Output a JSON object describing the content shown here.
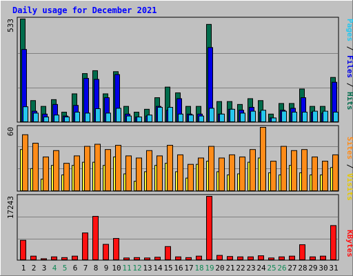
{
  "title": "Daily usage for December 2021",
  "colors": {
    "background": "#c0c0c0",
    "title_text": "#0000ff",
    "hits": "#006c4c",
    "files": "#0000e6",
    "pages": "#25c6ee",
    "visits": "#ffff33",
    "sites": "#ff8c19",
    "kbytes": "#ff1111",
    "weekend_label": "#118855",
    "weekday_label": "#000000"
  },
  "chart_data": [
    {
      "type": "bar",
      "panel": "requests",
      "categories": [
        "1",
        "2",
        "3",
        "4",
        "5",
        "6",
        "7",
        "8",
        "9",
        "10",
        "11",
        "12",
        "13",
        "14",
        "15",
        "16",
        "17",
        "18",
        "19",
        "20",
        "21",
        "22",
        "23",
        "24",
        "25",
        "26",
        "27",
        "28",
        "29",
        "30",
        "31"
      ],
      "weekend_days": [
        "4",
        "5",
        "11",
        "12",
        "18",
        "19",
        "25",
        "26"
      ],
      "ymax_label": "533",
      "ylim": [
        0,
        533
      ],
      "axis_label_parts": [
        "Pages",
        "/",
        "Files",
        "/",
        "Hits"
      ],
      "series": [
        {
          "name": "Hits",
          "color": "#006c4c",
          "values": [
            533,
            110,
            80,
            115,
            50,
            145,
            250,
            265,
            145,
            260,
            80,
            50,
            65,
            125,
            180,
            150,
            80,
            80,
            505,
            105,
            105,
            90,
            120,
            110,
            40,
            95,
            95,
            170,
            80,
            80,
            230
          ]
        },
        {
          "name": "Files",
          "color": "#0000e6",
          "values": [
            375,
            55,
            40,
            90,
            30,
            85,
            225,
            220,
            125,
            245,
            40,
            25,
            30,
            80,
            60,
            120,
            40,
            40,
            385,
            40,
            65,
            60,
            75,
            50,
            20,
            60,
            70,
            125,
            50,
            45,
            205
          ]
        },
        {
          "name": "Pages",
          "color": "#25c6ee",
          "values": [
            78,
            45,
            25,
            35,
            25,
            50,
            45,
            68,
            45,
            70,
            30,
            25,
            35,
            75,
            75,
            40,
            35,
            30,
            70,
            40,
            65,
            45,
            55,
            60,
            20,
            55,
            50,
            50,
            55,
            55,
            50
          ]
        }
      ]
    },
    {
      "type": "bar",
      "panel": "visitors",
      "categories": [
        "1",
        "2",
        "3",
        "4",
        "5",
        "6",
        "7",
        "8",
        "9",
        "10",
        "11",
        "12",
        "13",
        "14",
        "15",
        "16",
        "17",
        "18",
        "19",
        "20",
        "21",
        "22",
        "23",
        "24",
        "25",
        "26",
        "27",
        "28",
        "29",
        "30",
        "31"
      ],
      "ymax_label": "60",
      "ylim": [
        0,
        60
      ],
      "axis_label_parts": [
        "Sites",
        "/",
        "Visits"
      ],
      "series": [
        {
          "name": "Visits",
          "color": "#ffff33",
          "values": [
            39,
            21,
            11,
            24,
            15,
            24,
            27,
            27,
            24,
            32,
            16,
            9,
            18,
            24,
            26,
            18,
            12,
            25,
            28,
            18,
            15,
            16,
            27,
            31,
            17,
            15,
            24,
            17,
            15,
            15,
            22
          ]
        },
        {
          "name": "Sites",
          "color": "#ff8c19",
          "values": [
            53,
            45,
            32,
            38,
            26,
            33,
            42,
            44,
            39,
            43,
            33,
            31,
            38,
            33,
            43,
            34,
            25,
            31,
            42,
            31,
            34,
            32,
            39,
            60,
            28,
            42,
            38,
            39,
            32,
            28,
            34
          ]
        }
      ]
    },
    {
      "type": "bar",
      "panel": "traffic",
      "categories": [
        "1",
        "2",
        "3",
        "4",
        "5",
        "6",
        "7",
        "8",
        "9",
        "10",
        "11",
        "12",
        "13",
        "14",
        "15",
        "16",
        "17",
        "18",
        "19",
        "20",
        "21",
        "22",
        "23",
        "24",
        "25",
        "26",
        "27",
        "28",
        "29",
        "30",
        "31"
      ],
      "ymax_label": "17243",
      "ylim": [
        0,
        17243
      ],
      "axis_label_parts": [
        "KBytes"
      ],
      "series": [
        {
          "name": "KBytes",
          "color": "#ff1111",
          "values": [
            5300,
            1000,
            300,
            800,
            600,
            1000,
            7300,
            11800,
            4200,
            5800,
            500,
            600,
            500,
            700,
            3600,
            800,
            600,
            1000,
            17243,
            1200,
            900,
            800,
            800,
            1100,
            500,
            800,
            1000,
            4100,
            800,
            1000,
            9300
          ]
        }
      ]
    }
  ]
}
